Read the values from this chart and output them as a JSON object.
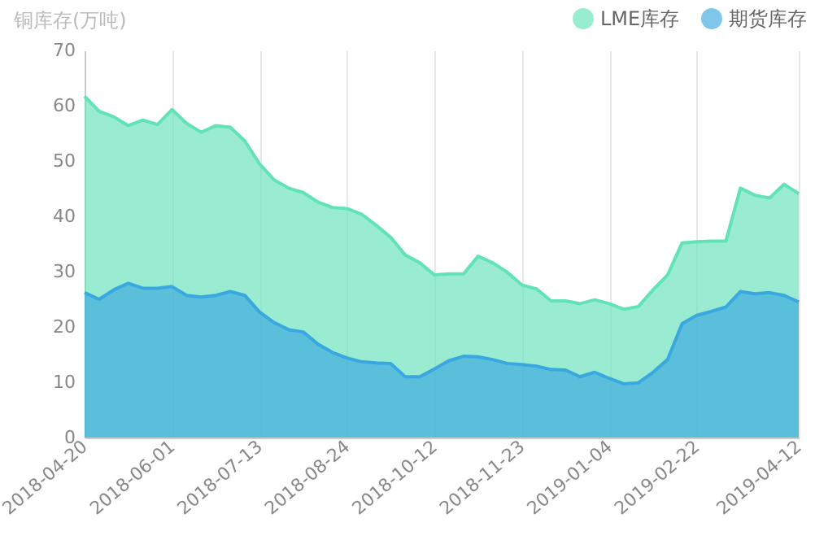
{
  "chart_data": {
    "type": "area",
    "ylabel": "铜库存(万吨)",
    "categories": [
      "2018-04-20",
      null,
      null,
      null,
      null,
      null,
      "2018-06-01",
      null,
      null,
      null,
      null,
      null,
      "2018-07-13",
      null,
      null,
      null,
      null,
      null,
      "2018-08-24",
      null,
      null,
      null,
      null,
      null,
      "2018-10-12",
      null,
      null,
      null,
      null,
      null,
      "2018-11-23",
      null,
      null,
      null,
      null,
      null,
      "2019-01-04",
      null,
      null,
      null,
      null,
      null,
      "2019-02-22",
      null,
      null,
      null,
      null,
      null,
      null,
      "2019-04-12"
    ],
    "series": [
      {
        "name": "LME库存",
        "color": "#62e2b8",
        "values": [
          61.7,
          59.0,
          58.0,
          56.4,
          57.4,
          56.6,
          59.3,
          56.8,
          55.2,
          56.4,
          56.1,
          53.6,
          49.5,
          46.6,
          45.1,
          44.3,
          42.6,
          41.6,
          41.4,
          40.4,
          38.4,
          36.2,
          33.0,
          31.6,
          29.4,
          29.6,
          29.6,
          32.8,
          31.6,
          29.9,
          27.6,
          26.9,
          24.7,
          24.7,
          24.2,
          24.9,
          24.2,
          23.2,
          23.7,
          26.7,
          29.4,
          35.2,
          35.4,
          35.5,
          35.5,
          45.1,
          43.8,
          43.3,
          45.8,
          44.1
        ]
      },
      {
        "name": "期货库存",
        "color": "#3aa8e0",
        "values": [
          26.2,
          25.0,
          26.7,
          27.9,
          27.0,
          27.0,
          27.3,
          25.7,
          25.4,
          25.7,
          26.4,
          25.7,
          22.7,
          20.8,
          19.5,
          19.1,
          16.9,
          15.4,
          14.4,
          13.7,
          13.5,
          13.4,
          11.0,
          11.0,
          12.4,
          13.9,
          14.7,
          14.6,
          14.1,
          13.4,
          13.2,
          12.9,
          12.3,
          12.2,
          11.0,
          11.8,
          10.7,
          9.7,
          9.9,
          11.8,
          14.1,
          20.6,
          22.1,
          22.8,
          23.6,
          26.4,
          26.0,
          26.2,
          25.7,
          24.5
        ]
      }
    ],
    "ylim": [
      0,
      70
    ],
    "yticks": [
      0,
      10,
      20,
      30,
      40,
      50,
      60,
      70
    ],
    "grid": "x",
    "legend": "top right",
    "marker": "none",
    "line_style": "solid"
  }
}
